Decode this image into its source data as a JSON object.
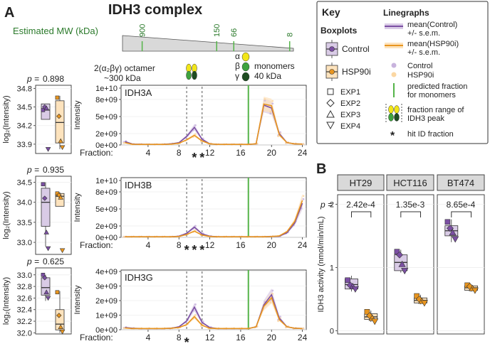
{
  "figure": {
    "panel_a_letter": "A",
    "panel_b_letter": "B",
    "main_title": "IDH3 complex",
    "mw_label": "Estimated MW (kDa)",
    "mw_ticks": [
      {
        "kda": 900,
        "label": "900",
        "frac": 0.115
      },
      {
        "kda": 150,
        "label": "150",
        "frac": 0.551
      },
      {
        "kda": 66,
        "label": "66",
        "frac": 0.651
      },
      {
        "kda": 8,
        "label": "8",
        "frac": 0.978
      }
    ],
    "octamer_label_1": "2(α₂βγ) octamer",
    "octamer_label_2": "~300 kDa",
    "alpha": "α",
    "beta": "β",
    "gamma": "γ",
    "monomers_label": "monomers",
    "monomer_mass": "40 kDa",
    "colors": {
      "control": "#7b4fa3",
      "control_fill": "#d9cbe6",
      "hsp90i": "#e8951f",
      "hsp90i_fill": "#fde3bd",
      "green": "#55b449",
      "alpha_yellow": "#f2e619",
      "beta_green": "#3ea33e",
      "gamma_dark": "#1f4d22"
    }
  },
  "key": {
    "title": "Key",
    "boxplots_title": "Boxplots",
    "control": "Control",
    "hsp90i": "HSP90i",
    "linegraphs_title": "Linegraphs",
    "mean_control_1": "mean(Control)",
    "mean_control_2": "+/- s.e.m.",
    "mean_hsp_1": "mean(HSP90i)",
    "mean_hsp_2": "+/- s.e.m.",
    "dot_control": "Control",
    "dot_hsp": "HSP90i",
    "exp1": "EXP1",
    "exp2": "EXP2",
    "exp3": "EXP3",
    "exp4": "EXP4",
    "pred_1": "predicted fraction",
    "pred_2": "for monomers",
    "range_1": "fraction range of",
    "range_2": "IDH3 peak",
    "hit": "hit ID fraction",
    "asterisk": "*"
  },
  "chart_data": [
    {
      "type": "box",
      "panel": "IDH3A boxplot",
      "p_label": "p =",
      "p_value": "0.898",
      "ylabel": "log₂(Intensity)",
      "ylim": [
        33.75,
        34.85
      ],
      "yticks": [
        {
          "v": 34.8,
          "label": "34.8"
        },
        {
          "v": 34.5,
          "label": "34.5"
        },
        {
          "v": 34.2,
          "label": "34.2"
        },
        {
          "v": 33.9,
          "label": "33.9"
        }
      ],
      "groups": [
        {
          "name": "Control",
          "q1": 34.3,
          "median": 34.45,
          "q3": 34.55,
          "whisker_low": 34.3,
          "whisker_high": 34.55,
          "points": [
            34.45,
            34.5,
            34.48,
            33.82
          ]
        },
        {
          "name": "HSP90i",
          "q1": 33.92,
          "median": 34.25,
          "q3": 34.6,
          "whisker_low": 33.82,
          "whisker_high": 34.68,
          "points": [
            34.65,
            34.35,
            33.95,
            33.85
          ]
        }
      ]
    },
    {
      "type": "box",
      "panel": "IDH3B boxplot",
      "p_label": "p =",
      "p_value": "0.935",
      "ylabel": "log₂(Intensity)",
      "ylim": [
        32.7,
        34.65
      ],
      "yticks": [
        {
          "v": 34.5,
          "label": "34.5"
        },
        {
          "v": 34.0,
          "label": "34.0"
        },
        {
          "v": 33.5,
          "label": "33.5"
        },
        {
          "v": 33.0,
          "label": "33.0"
        }
      ],
      "groups": [
        {
          "name": "Control",
          "q1": 33.4,
          "median": 34.0,
          "q3": 34.35,
          "whisker_low": 32.9,
          "whisker_high": 34.5,
          "points": [
            34.45,
            34.1,
            33.25,
            32.85
          ]
        },
        {
          "name": "HSP90i",
          "q1": 33.9,
          "median": 34.15,
          "q3": 34.22,
          "whisker_low": 33.9,
          "whisker_high": 34.25,
          "points": [
            34.22,
            34.18,
            34.12,
            32.8
          ]
        }
      ]
    },
    {
      "type": "box",
      "panel": "IDH3G boxplot",
      "p_label": "p =",
      "p_value": "0.625",
      "ylabel": "log₂(Intensity)",
      "ylim": [
        31.98,
        33.12
      ],
      "yticks": [
        {
          "v": 33.0,
          "label": "33.0"
        },
        {
          "v": 32.8,
          "label": "32.8"
        },
        {
          "v": 32.6,
          "label": "32.6"
        },
        {
          "v": 32.4,
          "label": "32.4"
        },
        {
          "v": 32.2,
          "label": "32.2"
        },
        {
          "v": 32.0,
          "label": "32.0"
        }
      ],
      "groups": [
        {
          "name": "Control",
          "q1": 32.65,
          "median": 32.78,
          "q3": 32.95,
          "whisker_low": 32.55,
          "whisker_high": 33.0,
          "points": [
            33.0,
            32.95,
            32.7,
            32.6
          ]
        },
        {
          "name": "HSP90i",
          "q1": 32.05,
          "median": 32.15,
          "q3": 32.4,
          "whisker_low": 32.0,
          "whisker_high": 32.72,
          "points": [
            32.7,
            32.3,
            32.1,
            32.02
          ]
        }
      ]
    },
    {
      "type": "line",
      "panel": "IDH3A",
      "ylabel": "Intensity",
      "xlabel": "Fraction:",
      "ylim": [
        0,
        10500000000.0
      ],
      "yticks": [
        {
          "v": 0,
          "label": "0e+00"
        },
        {
          "v": 2000000000.0,
          "label": "2e+09"
        },
        {
          "v": 5000000000.0,
          "label": "5e+09"
        },
        {
          "v": 8000000000.0,
          "label": "8e+09"
        },
        {
          "v": 10000000000.0,
          "label": "1e+10"
        }
      ],
      "xticks": [
        4,
        8,
        12,
        16,
        20,
        24
      ],
      "xticks_labels": [
        "4",
        "8",
        "12",
        "16",
        "20",
        "24"
      ],
      "x": [
        1,
        2,
        3,
        4,
        5,
        6,
        7,
        8,
        9,
        10,
        11,
        12,
        13,
        14,
        15,
        16,
        17,
        18,
        19,
        20,
        21,
        22,
        23,
        24
      ],
      "series": [
        {
          "name": "mean(Control)",
          "values": [
            600000000.0,
            150000000.0,
            120000000.0,
            100000000.0,
            100000000.0,
            120000000.0,
            200000000.0,
            400000000.0,
            1500000000.0,
            3100000000.0,
            1000000000.0,
            200000000.0,
            100000000.0,
            100000000.0,
            100000000.0,
            100000000.0,
            100000000.0,
            200000000.0,
            7000000000.0,
            6500000000.0,
            2000000000.0,
            400000000.0,
            200000000.0,
            150000000.0
          ]
        },
        {
          "name": "mean(HSP90i)",
          "values": [
            400000000.0,
            120000000.0,
            100000000.0,
            100000000.0,
            100000000.0,
            100000000.0,
            150000000.0,
            300000000.0,
            900000000.0,
            1700000000.0,
            700000000.0,
            200000000.0,
            100000000.0,
            100000000.0,
            100000000.0,
            100000000.0,
            100000000.0,
            200000000.0,
            7200000000.0,
            6900000000.0,
            1800000000.0,
            400000000.0,
            200000000.0,
            150000000.0
          ]
        }
      ],
      "dashed_fractions": [
        9,
        11
      ],
      "green_fraction": 17,
      "asterisks": [
        "*",
        "*"
      ],
      "asterisk_fractions": [
        10,
        11
      ]
    },
    {
      "type": "line",
      "panel": "IDH3B",
      "ylabel": "Intensity",
      "xlabel": "Fraction:",
      "ylim": [
        0,
        10500000000.0
      ],
      "yticks": [
        {
          "v": 0,
          "label": "0e+00"
        },
        {
          "v": 2000000000.0,
          "label": "2e+09"
        },
        {
          "v": 5000000000.0,
          "label": "5e+09"
        },
        {
          "v": 8000000000.0,
          "label": "8e+09"
        },
        {
          "v": 10000000000.0,
          "label": "1e+10"
        }
      ],
      "xticks": [
        4,
        8,
        12,
        16,
        20,
        24
      ],
      "xticks_labels": [
        "4",
        "8",
        "12",
        "16",
        "20",
        "24"
      ],
      "x": [
        1,
        2,
        3,
        4,
        5,
        6,
        7,
        8,
        9,
        10,
        11,
        12,
        13,
        14,
        15,
        16,
        17,
        18,
        19,
        20,
        21,
        22,
        23,
        24
      ],
      "series": [
        {
          "name": "mean(Control)",
          "values": [
            100000000.0,
            100000000.0,
            100000000.0,
            100000000.0,
            100000000.0,
            100000000.0,
            100000000.0,
            200000000.0,
            700000000.0,
            1800000000.0,
            600000000.0,
            200000000.0,
            100000000.0,
            100000000.0,
            100000000.0,
            100000000.0,
            100000000.0,
            100000000.0,
            100000000.0,
            150000000.0,
            200000000.0,
            800000000.0,
            2500000000.0,
            6000000000.0
          ]
        },
        {
          "name": "mean(HSP90i)",
          "values": [
            100000000.0,
            100000000.0,
            100000000.0,
            100000000.0,
            100000000.0,
            100000000.0,
            100000000.0,
            150000000.0,
            500000000.0,
            1100000000.0,
            400000000.0,
            150000000.0,
            100000000.0,
            100000000.0,
            100000000.0,
            100000000.0,
            100000000.0,
            100000000.0,
            100000000.0,
            150000000.0,
            250000000.0,
            1000000000.0,
            2800000000.0,
            6500000000.0
          ]
        }
      ],
      "dashed_fractions": [
        9,
        11
      ],
      "green_fraction": 17,
      "asterisks": [
        "*",
        "*",
        "*"
      ],
      "asterisk_fractions": [
        9,
        10,
        11
      ]
    },
    {
      "type": "line",
      "panel": "IDH3G",
      "ylabel": "Intensity",
      "xlabel": "Fraction:",
      "ylim": [
        0,
        4100000000.0
      ],
      "yticks": [
        {
          "v": 0,
          "label": "0e+00"
        },
        {
          "v": 1000000000.0,
          "label": "1e+09"
        },
        {
          "v": 2000000000.0,
          "label": "2e+09"
        },
        {
          "v": 3000000000.0,
          "label": "3e+09"
        },
        {
          "v": 4000000000.0,
          "label": "4e+09"
        }
      ],
      "xticks": [
        4,
        8,
        12,
        16,
        20,
        24
      ],
      "xticks_labels": [
        "4",
        "8",
        "12",
        "16",
        "20",
        "24"
      ],
      "x": [
        1,
        2,
        3,
        4,
        5,
        6,
        7,
        8,
        9,
        10,
        11,
        12,
        13,
        14,
        15,
        16,
        17,
        18,
        19,
        20,
        21,
        22,
        23,
        24
      ],
      "series": [
        {
          "name": "mean(Control)",
          "values": [
            150000000.0,
            100000000.0,
            80000000.0,
            80000000.0,
            80000000.0,
            80000000.0,
            100000000.0,
            200000000.0,
            600000000.0,
            1550000000.0,
            500000000.0,
            150000000.0,
            80000000.0,
            80000000.0,
            80000000.0,
            80000000.0,
            80000000.0,
            200000000.0,
            1700000000.0,
            2400000000.0,
            800000000.0,
            200000000.0,
            100000000.0,
            80000000.0
          ]
        },
        {
          "name": "mean(HSP90i)",
          "values": [
            120000000.0,
            80000000.0,
            80000000.0,
            80000000.0,
            80000000.0,
            80000000.0,
            100000000.0,
            150000000.0,
            350000000.0,
            900000000.0,
            300000000.0,
            100000000.0,
            80000000.0,
            80000000.0,
            80000000.0,
            80000000.0,
            80000000.0,
            200000000.0,
            1600000000.0,
            2200000000.0,
            700000000.0,
            200000000.0,
            100000000.0,
            80000000.0
          ]
        }
      ],
      "dashed_fractions": [
        9,
        11
      ],
      "green_fraction": 17,
      "asterisks": [
        "*"
      ],
      "asterisk_fractions": [
        9
      ]
    },
    {
      "type": "box",
      "panel": "IDH3 activity",
      "ylabel": "IDH3 activity (nmol/min/mL)",
      "ylim": [
        -0.05,
        2.15
      ],
      "yticks": [
        {
          "v": 0,
          "label": "0"
        },
        {
          "v": 1,
          "label": "1"
        },
        {
          "v": 2,
          "label": "2"
        }
      ],
      "p_label": "p =",
      "facets": [
        {
          "name": "HT29",
          "p_value": "2.42e-4",
          "groups": [
            {
              "name": "Control",
              "q1": 0.66,
              "median": 0.73,
              "q3": 0.82,
              "whisker_low": 0.62,
              "whisker_high": 0.87,
              "points": [
                0.8,
                0.72,
                0.7,
                0.66
              ]
            },
            {
              "name": "HSP90i",
              "q1": 0.18,
              "median": 0.22,
              "q3": 0.27,
              "whisker_low": 0.14,
              "whisker_high": 0.32,
              "points": [
                0.3,
                0.24,
                0.2,
                0.15
              ]
            }
          ]
        },
        {
          "name": "HCT116",
          "p_value": "1.35e-3",
          "groups": [
            {
              "name": "Control",
              "q1": 0.95,
              "median": 1.08,
              "q3": 1.2,
              "whisker_low": 0.92,
              "whisker_high": 1.28,
              "points": [
                1.25,
                1.2,
                1.05,
                0.95
              ]
            },
            {
              "name": "HSP90i",
              "q1": 0.44,
              "median": 0.48,
              "q3": 0.52,
              "whisker_low": 0.42,
              "whisker_high": 0.57,
              "points": [
                0.55,
                0.5,
                0.47,
                0.44
              ]
            }
          ]
        },
        {
          "name": "BT474",
          "p_value": "8.65e-4",
          "groups": [
            {
              "name": "Control",
              "q1": 1.5,
              "median": 1.58,
              "q3": 1.66,
              "whisker_low": 1.4,
              "whisker_high": 1.76,
              "points": [
                1.72,
                1.62,
                1.55,
                1.45
              ]
            },
            {
              "name": "HSP90i",
              "q1": 0.64,
              "median": 0.68,
              "q3": 0.71,
              "whisker_low": 0.62,
              "whisker_high": 0.73,
              "points": [
                0.72,
                0.7,
                0.67,
                0.64
              ]
            }
          ]
        }
      ]
    }
  ]
}
